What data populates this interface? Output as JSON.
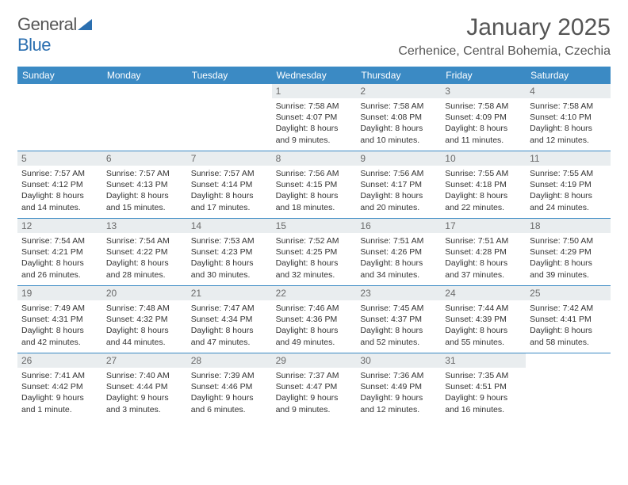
{
  "logo": {
    "word1": "General",
    "word2": "Blue"
  },
  "title": "January 2025",
  "location": "Cerhenice, Central Bohemia, Czechia",
  "colors": {
    "header_bar": "#3b8ac4",
    "daynum_bg": "#e9edef",
    "text": "#333333",
    "title_text": "#555555",
    "logo_blue": "#2b6fb0",
    "page_bg": "#ffffff",
    "row_border": "#3b8ac4"
  },
  "weekdays": [
    "Sunday",
    "Monday",
    "Tuesday",
    "Wednesday",
    "Thursday",
    "Friday",
    "Saturday"
  ],
  "weeks": [
    [
      {
        "blank": true
      },
      {
        "blank": true
      },
      {
        "blank": true
      },
      {
        "day": "1",
        "sunrise": "Sunrise: 7:58 AM",
        "sunset": "Sunset: 4:07 PM",
        "daylight1": "Daylight: 8 hours",
        "daylight2": "and 9 minutes."
      },
      {
        "day": "2",
        "sunrise": "Sunrise: 7:58 AM",
        "sunset": "Sunset: 4:08 PM",
        "daylight1": "Daylight: 8 hours",
        "daylight2": "and 10 minutes."
      },
      {
        "day": "3",
        "sunrise": "Sunrise: 7:58 AM",
        "sunset": "Sunset: 4:09 PM",
        "daylight1": "Daylight: 8 hours",
        "daylight2": "and 11 minutes."
      },
      {
        "day": "4",
        "sunrise": "Sunrise: 7:58 AM",
        "sunset": "Sunset: 4:10 PM",
        "daylight1": "Daylight: 8 hours",
        "daylight2": "and 12 minutes."
      }
    ],
    [
      {
        "day": "5",
        "sunrise": "Sunrise: 7:57 AM",
        "sunset": "Sunset: 4:12 PM",
        "daylight1": "Daylight: 8 hours",
        "daylight2": "and 14 minutes."
      },
      {
        "day": "6",
        "sunrise": "Sunrise: 7:57 AM",
        "sunset": "Sunset: 4:13 PM",
        "daylight1": "Daylight: 8 hours",
        "daylight2": "and 15 minutes."
      },
      {
        "day": "7",
        "sunrise": "Sunrise: 7:57 AM",
        "sunset": "Sunset: 4:14 PM",
        "daylight1": "Daylight: 8 hours",
        "daylight2": "and 17 minutes."
      },
      {
        "day": "8",
        "sunrise": "Sunrise: 7:56 AM",
        "sunset": "Sunset: 4:15 PM",
        "daylight1": "Daylight: 8 hours",
        "daylight2": "and 18 minutes."
      },
      {
        "day": "9",
        "sunrise": "Sunrise: 7:56 AM",
        "sunset": "Sunset: 4:17 PM",
        "daylight1": "Daylight: 8 hours",
        "daylight2": "and 20 minutes."
      },
      {
        "day": "10",
        "sunrise": "Sunrise: 7:55 AM",
        "sunset": "Sunset: 4:18 PM",
        "daylight1": "Daylight: 8 hours",
        "daylight2": "and 22 minutes."
      },
      {
        "day": "11",
        "sunrise": "Sunrise: 7:55 AM",
        "sunset": "Sunset: 4:19 PM",
        "daylight1": "Daylight: 8 hours",
        "daylight2": "and 24 minutes."
      }
    ],
    [
      {
        "day": "12",
        "sunrise": "Sunrise: 7:54 AM",
        "sunset": "Sunset: 4:21 PM",
        "daylight1": "Daylight: 8 hours",
        "daylight2": "and 26 minutes."
      },
      {
        "day": "13",
        "sunrise": "Sunrise: 7:54 AM",
        "sunset": "Sunset: 4:22 PM",
        "daylight1": "Daylight: 8 hours",
        "daylight2": "and 28 minutes."
      },
      {
        "day": "14",
        "sunrise": "Sunrise: 7:53 AM",
        "sunset": "Sunset: 4:23 PM",
        "daylight1": "Daylight: 8 hours",
        "daylight2": "and 30 minutes."
      },
      {
        "day": "15",
        "sunrise": "Sunrise: 7:52 AM",
        "sunset": "Sunset: 4:25 PM",
        "daylight1": "Daylight: 8 hours",
        "daylight2": "and 32 minutes."
      },
      {
        "day": "16",
        "sunrise": "Sunrise: 7:51 AM",
        "sunset": "Sunset: 4:26 PM",
        "daylight1": "Daylight: 8 hours",
        "daylight2": "and 34 minutes."
      },
      {
        "day": "17",
        "sunrise": "Sunrise: 7:51 AM",
        "sunset": "Sunset: 4:28 PM",
        "daylight1": "Daylight: 8 hours",
        "daylight2": "and 37 minutes."
      },
      {
        "day": "18",
        "sunrise": "Sunrise: 7:50 AM",
        "sunset": "Sunset: 4:29 PM",
        "daylight1": "Daylight: 8 hours",
        "daylight2": "and 39 minutes."
      }
    ],
    [
      {
        "day": "19",
        "sunrise": "Sunrise: 7:49 AM",
        "sunset": "Sunset: 4:31 PM",
        "daylight1": "Daylight: 8 hours",
        "daylight2": "and 42 minutes."
      },
      {
        "day": "20",
        "sunrise": "Sunrise: 7:48 AM",
        "sunset": "Sunset: 4:32 PM",
        "daylight1": "Daylight: 8 hours",
        "daylight2": "and 44 minutes."
      },
      {
        "day": "21",
        "sunrise": "Sunrise: 7:47 AM",
        "sunset": "Sunset: 4:34 PM",
        "daylight1": "Daylight: 8 hours",
        "daylight2": "and 47 minutes."
      },
      {
        "day": "22",
        "sunrise": "Sunrise: 7:46 AM",
        "sunset": "Sunset: 4:36 PM",
        "daylight1": "Daylight: 8 hours",
        "daylight2": "and 49 minutes."
      },
      {
        "day": "23",
        "sunrise": "Sunrise: 7:45 AM",
        "sunset": "Sunset: 4:37 PM",
        "daylight1": "Daylight: 8 hours",
        "daylight2": "and 52 minutes."
      },
      {
        "day": "24",
        "sunrise": "Sunrise: 7:44 AM",
        "sunset": "Sunset: 4:39 PM",
        "daylight1": "Daylight: 8 hours",
        "daylight2": "and 55 minutes."
      },
      {
        "day": "25",
        "sunrise": "Sunrise: 7:42 AM",
        "sunset": "Sunset: 4:41 PM",
        "daylight1": "Daylight: 8 hours",
        "daylight2": "and 58 minutes."
      }
    ],
    [
      {
        "day": "26",
        "sunrise": "Sunrise: 7:41 AM",
        "sunset": "Sunset: 4:42 PM",
        "daylight1": "Daylight: 9 hours",
        "daylight2": "and 1 minute."
      },
      {
        "day": "27",
        "sunrise": "Sunrise: 7:40 AM",
        "sunset": "Sunset: 4:44 PM",
        "daylight1": "Daylight: 9 hours",
        "daylight2": "and 3 minutes."
      },
      {
        "day": "28",
        "sunrise": "Sunrise: 7:39 AM",
        "sunset": "Sunset: 4:46 PM",
        "daylight1": "Daylight: 9 hours",
        "daylight2": "and 6 minutes."
      },
      {
        "day": "29",
        "sunrise": "Sunrise: 7:37 AM",
        "sunset": "Sunset: 4:47 PM",
        "daylight1": "Daylight: 9 hours",
        "daylight2": "and 9 minutes."
      },
      {
        "day": "30",
        "sunrise": "Sunrise: 7:36 AM",
        "sunset": "Sunset: 4:49 PM",
        "daylight1": "Daylight: 9 hours",
        "daylight2": "and 12 minutes."
      },
      {
        "day": "31",
        "sunrise": "Sunrise: 7:35 AM",
        "sunset": "Sunset: 4:51 PM",
        "daylight1": "Daylight: 9 hours",
        "daylight2": "and 16 minutes."
      },
      {
        "blank": true
      }
    ]
  ]
}
